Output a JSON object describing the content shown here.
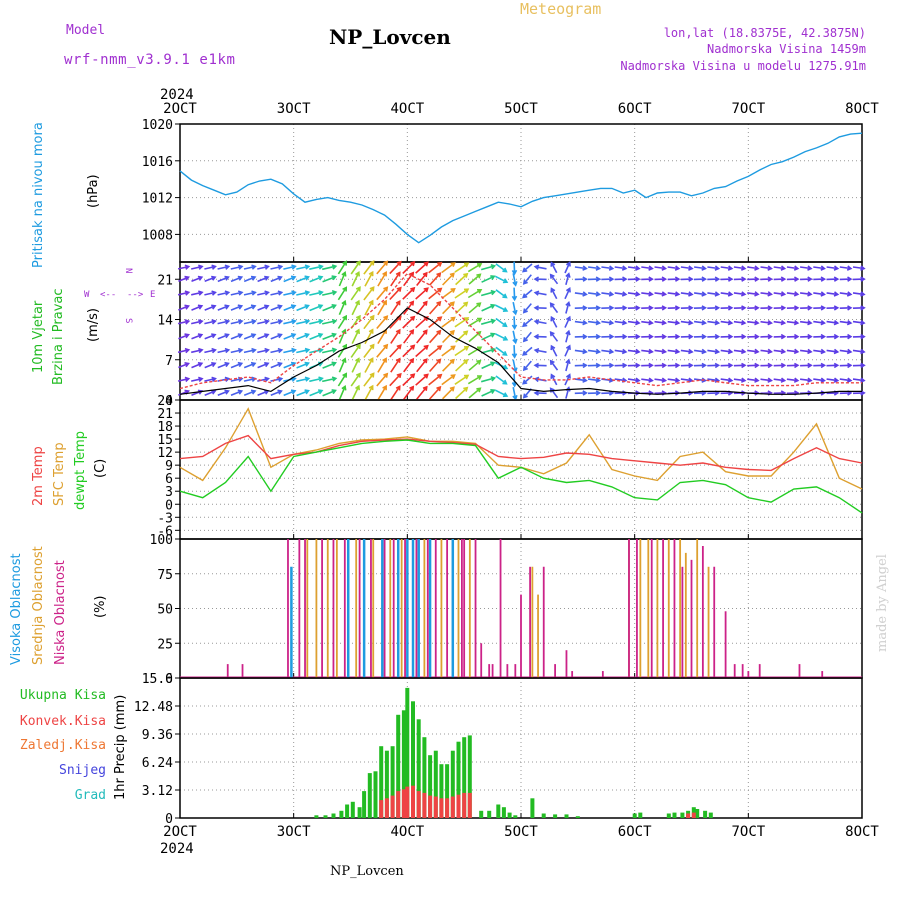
{
  "header": {
    "model_label": "Model",
    "model_name": "wrf-nmm_v3.9.1 e1km",
    "station_title": "NP_Lovcen",
    "meteogram_label": "Meteogram",
    "lonlat": "lon,lat (18.8375E, 42.3875N)",
    "elevation": "Nadmorska Visina 1459m",
    "model_elevation": "Nadmorska Visina u modelu 1275.91m",
    "footer_station": "NP_Lovcen",
    "credit": "made by Angel"
  },
  "colors": {
    "pressure": "#1e9be0",
    "wind_label": "#22bb22",
    "temp2m": "#ee4444",
    "sfc": "#dda030",
    "dewpt": "#22cc22",
    "high_cloud": "#1e9be0",
    "mid_cloud": "#dda030",
    "low_cloud": "#cc2288",
    "total_precip": "#22bb22",
    "conv_precip": "#ee4444",
    "frozen_precip": "#ee7733",
    "snow": "#4444dd",
    "hail": "#22bbbb",
    "header_purple": "#a030d0",
    "header_gold": "#e8c060",
    "credit": "#d0d0d0"
  },
  "x_axis": {
    "year": "2024",
    "ticks": [
      "2OCT",
      "3OCT",
      "4OCT",
      "5OCT",
      "6OCT",
      "7OCT",
      "8OCT"
    ]
  },
  "panel_labels": {
    "pressure": {
      "title": "Pritisak na nivou mora",
      "unit": "(hPa)"
    },
    "wind": {
      "title": "10m Vjetar",
      "title2": "Brzina i Pravac",
      "unit": "(m/s)",
      "compass_n": "N",
      "compass_s": "S",
      "compass_w": "W",
      "compass_e": "E",
      "compass_w_arrow": "<--",
      "compass_e_arrow": "-->"
    },
    "temp": {
      "line1": "2m Temp",
      "line2": "SFC Temp",
      "line3": "dewpt Temp",
      "unit": "(C)"
    },
    "cloud": {
      "line1": "Visoka Oblacnost",
      "line2": "Srednja Oblacnost",
      "line3": "Niska Oblacnost",
      "unit": "(%)"
    },
    "precip": {
      "axis_label": "1hr Precip (mm)",
      "legend": [
        "Ukupna Kisa",
        "Konvek.Kisa",
        "Zaledj.Kisa",
        "Snijeg",
        "Grad"
      ]
    }
  },
  "chart_data": [
    {
      "type": "line",
      "name_ref": "pressure",
      "ylim": [
        1005,
        1020
      ],
      "yticks": [
        "1008",
        "1012",
        "1016",
        "1020"
      ],
      "grid": true,
      "x": [
        2.0,
        2.1,
        2.2,
        2.3,
        2.4,
        2.5,
        2.6,
        2.7,
        2.8,
        2.9,
        3.0,
        3.1,
        3.2,
        3.3,
        3.4,
        3.5,
        3.6,
        3.7,
        3.8,
        3.9,
        4.0,
        4.1,
        4.2,
        4.3,
        4.4,
        4.5,
        4.6,
        4.7,
        4.8,
        4.9,
        5.0,
        5.1,
        5.2,
        5.3,
        5.4,
        5.5,
        5.6,
        5.7,
        5.8,
        5.9,
        6.0,
        6.1,
        6.2,
        6.3,
        6.4,
        6.5,
        6.6,
        6.7,
        6.8,
        6.9,
        7.0,
        7.1,
        7.2,
        7.3,
        7.4,
        7.5,
        7.6,
        7.7,
        7.8,
        7.9,
        8.0
      ],
      "values": [
        1014.9,
        1013.9,
        1013.3,
        1012.8,
        1012.3,
        1012.6,
        1013.4,
        1013.8,
        1014.0,
        1013.5,
        1012.4,
        1011.5,
        1011.8,
        1012.0,
        1011.7,
        1011.5,
        1011.2,
        1010.7,
        1010.1,
        1009.1,
        1008.0,
        1007.1,
        1007.9,
        1008.8,
        1009.5,
        1010.0,
        1010.5,
        1011.0,
        1011.5,
        1011.3,
        1011.0,
        1011.6,
        1012.0,
        1012.2,
        1012.4,
        1012.6,
        1012.8,
        1013.0,
        1013.0,
        1012.5,
        1012.8,
        1012.0,
        1012.5,
        1012.6,
        1012.6,
        1012.2,
        1012.5,
        1013.0,
        1013.2,
        1013.8,
        1014.3,
        1015.0,
        1015.6,
        1015.9,
        1016.4,
        1017.0,
        1017.4,
        1017.9,
        1018.6,
        1018.9,
        1019.0
      ]
    },
    {
      "type": "line",
      "name_ref": "wind",
      "ylim": [
        0,
        24
      ],
      "yticks": [
        "0",
        "7",
        "14",
        "21"
      ],
      "grid": true,
      "x": [
        2.0,
        2.2,
        2.4,
        2.6,
        2.8,
        3.0,
        3.2,
        3.4,
        3.6,
        3.8,
        4.0,
        4.2,
        4.4,
        4.6,
        4.8,
        5.0,
        5.2,
        5.4,
        5.6,
        5.8,
        6.0,
        6.2,
        6.4,
        6.6,
        6.8,
        7.0,
        7.2,
        7.4,
        7.6,
        7.8,
        8.0
      ],
      "speed": [
        1.0,
        1.5,
        2.0,
        2.5,
        1.5,
        4.0,
        6.0,
        8.5,
        10.0,
        12.0,
        16.0,
        14.0,
        11.0,
        9.0,
        6.5,
        2.0,
        1.5,
        1.8,
        2.0,
        1.5,
        1.2,
        1.0,
        1.2,
        1.5,
        1.5,
        1.2,
        1.0,
        1.0,
        1.2,
        1.5,
        1.5
      ],
      "gust": [
        2.0,
        3.0,
        3.5,
        4.0,
        3.0,
        6.0,
        8.5,
        11.0,
        14.0,
        17.5,
        22.0,
        20.0,
        16.0,
        12.0,
        8.0,
        4.0,
        3.5,
        3.5,
        4.0,
        3.5,
        3.0,
        2.5,
        3.0,
        3.5,
        3.0,
        2.5,
        2.5,
        2.5,
        3.0,
        3.0,
        3.0
      ]
    },
    {
      "type": "line",
      "name_ref": "temperature",
      "ylim": [
        -8,
        24
      ],
      "yticks": [
        "-6",
        "-3",
        "0",
        "3",
        "6",
        "9",
        "12",
        "15",
        "18",
        "21",
        "24"
      ],
      "grid": true,
      "x": [
        2.0,
        2.2,
        2.4,
        2.6,
        2.8,
        3.0,
        3.2,
        3.4,
        3.6,
        3.8,
        4.0,
        4.2,
        4.4,
        4.6,
        4.8,
        5.0,
        5.2,
        5.4,
        5.6,
        5.8,
        6.0,
        6.2,
        6.4,
        6.6,
        6.8,
        7.0,
        7.2,
        7.4,
        7.6,
        7.8,
        8.0
      ],
      "series": [
        {
          "name": "2m Temp",
          "values": [
            10.5,
            11.0,
            14.0,
            15.8,
            10.5,
            11.5,
            12.0,
            13.5,
            14.5,
            14.8,
            15.0,
            14.5,
            14.2,
            13.8,
            11.0,
            10.5,
            10.8,
            11.8,
            11.5,
            10.5,
            10.0,
            9.5,
            9.0,
            9.5,
            8.5,
            8.0,
            7.8,
            10.5,
            13.0,
            10.5,
            9.5
          ]
        },
        {
          "name": "SFC Temp",
          "values": [
            8.5,
            5.5,
            13.0,
            22.0,
            8.5,
            11.5,
            12.5,
            14.0,
            14.8,
            15.0,
            15.5,
            14.5,
            14.5,
            14.0,
            9.0,
            8.5,
            7.0,
            9.5,
            16.0,
            8.0,
            6.5,
            5.5,
            11.0,
            12.0,
            7.5,
            6.5,
            6.5,
            12.0,
            18.5,
            6.0,
            3.5
          ]
        },
        {
          "name": "dewpt Temp",
          "values": [
            3.0,
            1.5,
            5.0,
            11.0,
            3.0,
            11.0,
            12.0,
            13.0,
            14.0,
            14.5,
            14.8,
            14.0,
            14.0,
            13.5,
            6.0,
            8.5,
            6.0,
            5.0,
            5.5,
            4.0,
            1.5,
            1.0,
            5.0,
            5.5,
            4.5,
            1.5,
            0.5,
            3.5,
            4.0,
            1.5,
            -2.0
          ]
        }
      ]
    },
    {
      "type": "bar",
      "name_ref": "cloud",
      "ylim": [
        0,
        100
      ],
      "yticks": [
        "0",
        "25",
        "50",
        "75",
        "100"
      ],
      "grid": true,
      "series": [
        {
          "name": "Visoka Oblacnost",
          "points": [
            [
              2.98,
              80
            ],
            [
              3.48,
              100
            ],
            [
              3.62,
              100
            ],
            [
              3.78,
              100
            ],
            [
              3.92,
              100
            ],
            [
              4.0,
              100
            ],
            [
              4.05,
              100
            ],
            [
              4.1,
              100
            ],
            [
              4.2,
              100
            ],
            [
              4.4,
              100
            ]
          ]
        },
        {
          "name": "Srednja Oblacnost",
          "points": [
            [
              3.12,
              100
            ],
            [
              3.2,
              100
            ],
            [
              3.3,
              100
            ],
            [
              3.38,
              100
            ],
            [
              3.55,
              100
            ],
            [
              3.7,
              100
            ],
            [
              3.85,
              100
            ],
            [
              3.95,
              100
            ],
            [
              4.15,
              100
            ],
            [
              4.3,
              100
            ],
            [
              4.45,
              100
            ],
            [
              4.55,
              100
            ],
            [
              5.1,
              80
            ],
            [
              5.15,
              60
            ],
            [
              5.95,
              100
            ],
            [
              6.05,
              100
            ],
            [
              6.12,
              100
            ],
            [
              6.2,
              100
            ],
            [
              6.3,
              100
            ],
            [
              6.4,
              100
            ],
            [
              6.45,
              90
            ],
            [
              6.55,
              100
            ],
            [
              6.65,
              80
            ]
          ]
        },
        {
          "name": "Niska Oblacnost",
          "points": [
            [
              2.42,
              10
            ],
            [
              2.55,
              10
            ],
            [
              2.95,
              100
            ],
            [
              3.05,
              100
            ],
            [
              3.1,
              100
            ],
            [
              3.25,
              100
            ],
            [
              3.35,
              100
            ],
            [
              3.45,
              100
            ],
            [
              3.58,
              100
            ],
            [
              3.68,
              100
            ],
            [
              3.8,
              100
            ],
            [
              3.88,
              100
            ],
            [
              3.98,
              100
            ],
            [
              4.08,
              100
            ],
            [
              4.18,
              100
            ],
            [
              4.25,
              100
            ],
            [
              4.35,
              100
            ],
            [
              4.48,
              100
            ],
            [
              4.5,
              100
            ],
            [
              4.6,
              100
            ],
            [
              4.65,
              25
            ],
            [
              4.72,
              10
            ],
            [
              4.75,
              10
            ],
            [
              4.82,
              100
            ],
            [
              4.88,
              10
            ],
            [
              4.95,
              10
            ],
            [
              5.0,
              60
            ],
            [
              5.08,
              80
            ],
            [
              5.2,
              80
            ],
            [
              5.3,
              10
            ],
            [
              5.4,
              20
            ],
            [
              5.45,
              5
            ],
            [
              5.72,
              5
            ],
            [
              5.95,
              100
            ],
            [
              6.02,
              100
            ],
            [
              6.15,
              100
            ],
            [
              6.25,
              100
            ],
            [
              6.35,
              100
            ],
            [
              6.42,
              80
            ],
            [
              6.5,
              85
            ],
            [
              6.6,
              95
            ],
            [
              6.7,
              80
            ],
            [
              6.8,
              48
            ],
            [
              6.88,
              10
            ],
            [
              6.95,
              10
            ],
            [
              7.0,
              5
            ],
            [
              7.1,
              10
            ],
            [
              7.45,
              10
            ],
            [
              7.65,
              5
            ]
          ]
        }
      ]
    },
    {
      "type": "bar",
      "name_ref": "precip",
      "ylim": [
        0,
        15.6
      ],
      "yticks": [
        "0",
        "3.12",
        "6.24",
        "9.36",
        "12.48",
        "15.6"
      ],
      "grid": true,
      "series": [
        {
          "name": "Ukupna Kisa",
          "points": [
            [
              3.2,
              0.3
            ],
            [
              3.28,
              0.3
            ],
            [
              3.35,
              0.5
            ],
            [
              3.42,
              0.8
            ],
            [
              3.47,
              1.5
            ],
            [
              3.52,
              1.8
            ],
            [
              3.58,
              1.2
            ],
            [
              3.62,
              3.0
            ],
            [
              3.67,
              5.0
            ],
            [
              3.72,
              5.2
            ],
            [
              3.77,
              8.0
            ],
            [
              3.82,
              7.5
            ],
            [
              3.87,
              8.0
            ],
            [
              3.92,
              11.5
            ],
            [
              3.97,
              12.0
            ],
            [
              4.0,
              14.5
            ],
            [
              4.05,
              13.0
            ],
            [
              4.1,
              11.0
            ],
            [
              4.15,
              9.0
            ],
            [
              4.2,
              7.0
            ],
            [
              4.25,
              7.5
            ],
            [
              4.3,
              6.0
            ],
            [
              4.35,
              6.0
            ],
            [
              4.4,
              7.5
            ],
            [
              4.45,
              8.5
            ],
            [
              4.5,
              9.0
            ],
            [
              4.55,
              9.2
            ],
            [
              4.65,
              0.8
            ],
            [
              4.72,
              0.8
            ],
            [
              4.8,
              1.5
            ],
            [
              4.85,
              1.2
            ],
            [
              4.9,
              0.6
            ],
            [
              4.95,
              0.3
            ],
            [
              5.1,
              2.2
            ],
            [
              5.2,
              0.5
            ],
            [
              5.3,
              0.4
            ],
            [
              5.4,
              0.4
            ],
            [
              5.5,
              0.2
            ],
            [
              6.0,
              0.5
            ],
            [
              6.05,
              0.6
            ],
            [
              6.3,
              0.5
            ],
            [
              6.35,
              0.6
            ],
            [
              6.42,
              0.6
            ],
            [
              6.47,
              0.8
            ],
            [
              6.52,
              1.2
            ],
            [
              6.55,
              1.0
            ],
            [
              6.62,
              0.8
            ],
            [
              6.67,
              0.6
            ]
          ]
        },
        {
          "name": "Konvek.Kisa",
          "points": [
            [
              3.77,
              2.0
            ],
            [
              3.82,
              2.2
            ],
            [
              3.87,
              2.5
            ],
            [
              3.92,
              3.0
            ],
            [
              3.97,
              3.2
            ],
            [
              4.0,
              3.5
            ],
            [
              4.05,
              3.6
            ],
            [
              4.1,
              3.0
            ],
            [
              4.15,
              2.8
            ],
            [
              4.2,
              2.5
            ],
            [
              4.25,
              2.4
            ],
            [
              4.3,
              2.2
            ],
            [
              4.35,
              2.2
            ],
            [
              4.4,
              2.4
            ],
            [
              4.45,
              2.6
            ],
            [
              4.5,
              2.8
            ],
            [
              4.55,
              2.8
            ],
            [
              6.47,
              0.5
            ],
            [
              6.52,
              0.6
            ]
          ]
        },
        {
          "name": "Zaledj.Kisa",
          "points": []
        },
        {
          "name": "Snijeg",
          "points": []
        },
        {
          "name": "Grad",
          "points": []
        }
      ]
    }
  ]
}
